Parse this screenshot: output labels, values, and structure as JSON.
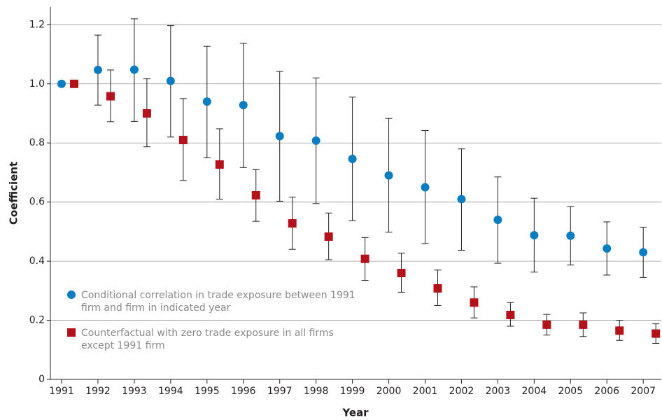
{
  "chart_data": {
    "type": "scatter",
    "x_label": "Year",
    "y_label": "Coefficient",
    "categories": [
      "1991",
      "1992",
      "1993",
      "1994",
      "1995",
      "1996",
      "1997",
      "1998",
      "1999",
      "2000",
      "2001",
      "2002",
      "2003",
      "2004",
      "2005",
      "2006",
      "2007"
    ],
    "series": [
      {
        "name": "Conditional correlation in trade exposure between 1991 firm and firm in indicated year",
        "color": "#0a7cc1",
        "marker": "circle",
        "values": [
          1.0,
          1.047,
          1.048,
          1.01,
          0.94,
          0.928,
          0.823,
          0.808,
          0.746,
          0.69,
          0.65,
          0.61,
          0.54,
          0.488,
          0.486,
          0.443,
          0.43
        ],
        "upper": [
          null,
          1.165,
          1.22,
          1.197,
          1.127,
          1.137,
          1.042,
          1.02,
          0.955,
          0.883,
          0.842,
          0.78,
          0.685,
          0.613,
          0.585,
          0.533,
          0.515
        ],
        "lower": [
          null,
          0.928,
          0.873,
          0.82,
          0.75,
          0.717,
          0.603,
          0.595,
          0.537,
          0.498,
          0.46,
          0.437,
          0.393,
          0.363,
          0.387,
          0.353,
          0.345
        ]
      },
      {
        "name": "Counterfactual with zero trade exposure in all firms except 1991 firm",
        "color": "#b3121b",
        "marker": "square",
        "values": [
          1.0,
          0.958,
          0.9,
          0.81,
          0.727,
          0.623,
          0.528,
          0.483,
          0.408,
          0.36,
          0.308,
          0.26,
          0.218,
          0.185,
          0.185,
          0.165,
          0.155
        ],
        "upper": [
          null,
          1.047,
          1.017,
          0.95,
          0.848,
          0.71,
          0.617,
          0.563,
          0.48,
          0.427,
          0.37,
          0.313,
          0.26,
          0.22,
          0.225,
          0.2,
          0.188
        ],
        "lower": [
          null,
          0.872,
          0.787,
          0.673,
          0.61,
          0.535,
          0.44,
          0.405,
          0.335,
          0.295,
          0.25,
          0.208,
          0.18,
          0.15,
          0.145,
          0.132,
          0.122
        ]
      }
    ],
    "ylim": [
      0,
      1.26
    ],
    "yticks": [
      0,
      0.2,
      0.4,
      0.6,
      0.8,
      {
        "value": 1,
        "label": "1.0"
      },
      1.2
    ],
    "grid": true
  }
}
